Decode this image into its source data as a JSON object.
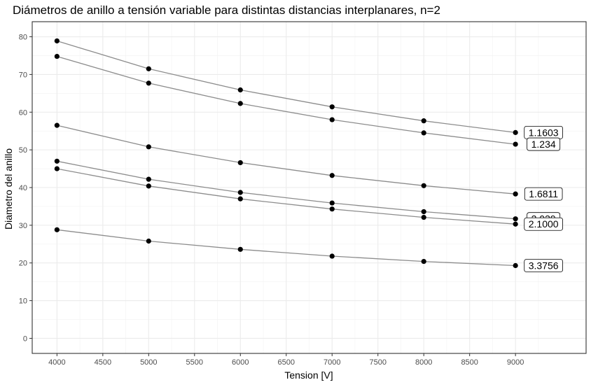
{
  "chart_data": {
    "type": "line",
    "title": "Diámetros de anillo a tensión variable para distintas distancias interplanares, n=2",
    "xlabel": "Tension [V]",
    "ylabel": "Diametro del anillo",
    "xlim": [
      3730,
      9770
    ],
    "ylim": [
      -4,
      84
    ],
    "x_ticks": [
      4000,
      4500,
      5000,
      5500,
      6000,
      6500,
      7000,
      7500,
      8000,
      8500,
      9000
    ],
    "y_ticks": [
      0,
      10,
      20,
      30,
      40,
      50,
      60,
      70,
      80
    ],
    "grid": true,
    "line_color": "#8c8c8c",
    "point_color": "#000000",
    "x": [
      4000,
      5000,
      6000,
      7000,
      8000,
      9000
    ],
    "series": [
      {
        "label": "1.1603",
        "values": [
          78.9,
          71.5,
          65.9,
          61.4,
          57.7,
          54.6
        ]
      },
      {
        "label": "1.234",
        "values": [
          74.8,
          67.7,
          62.3,
          58.0,
          54.5,
          51.5
        ]
      },
      {
        "label": "1.6811",
        "values": [
          56.5,
          50.8,
          46.6,
          43.2,
          40.5,
          38.3
        ]
      },
      {
        "label": "2.039",
        "values": [
          47.0,
          42.2,
          38.7,
          35.9,
          33.6,
          31.7
        ]
      },
      {
        "label": "2.1000",
        "values": [
          45.0,
          40.4,
          37.0,
          34.3,
          32.1,
          30.3
        ]
      },
      {
        "label": "3.3756",
        "values": [
          28.8,
          25.8,
          23.6,
          21.8,
          20.4,
          19.3
        ]
      }
    ]
  }
}
